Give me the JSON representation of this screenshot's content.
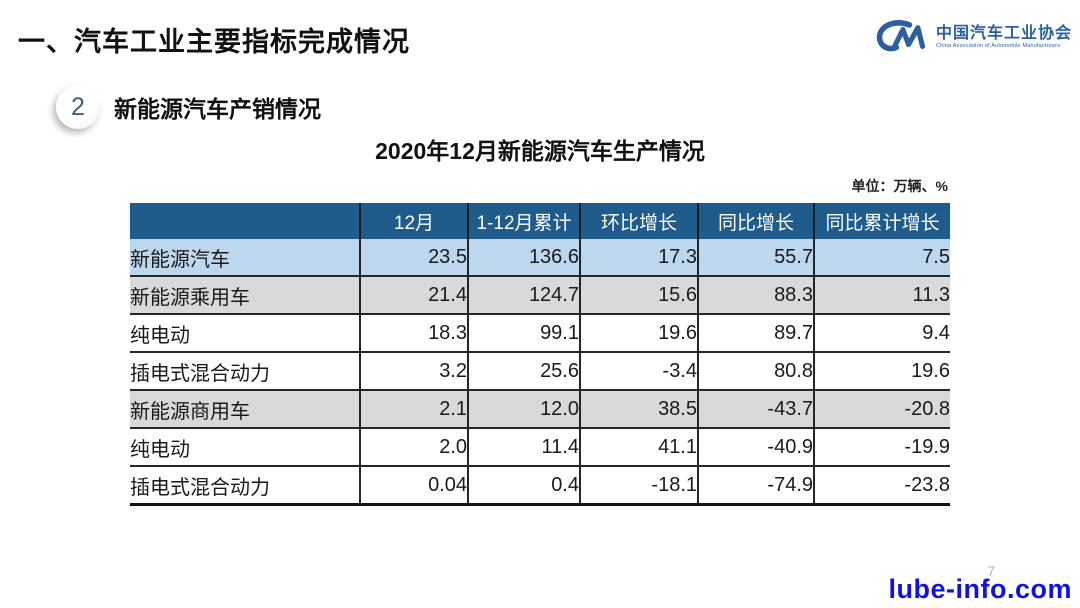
{
  "slide": {
    "main_title": "一、汽车工业主要指标完成情况",
    "section_number": "2",
    "section_title": "新能源汽车产销情况",
    "table_title": "2020年12月新能源汽车生产情况",
    "unit_note": "单位：万辆、%",
    "page_number": "7",
    "watermark": "lube-info.com"
  },
  "logo": {
    "name": "中国汽车工业协会",
    "subtitle": "China Association of Automobile Manufacturers"
  },
  "colors": {
    "header_bg": "#1f5c8c",
    "highlight_row_bg": "#bdd7ee",
    "subtotal_row_bg": "#d9d9d9",
    "logo_blue": "#2b5f9e",
    "watermark_blue": "#1212e0",
    "border_dark": "#262626"
  },
  "chart_data": {
    "type": "table",
    "title": "2020年12月新能源汽车生产情况",
    "unit": "万辆、%",
    "columns": [
      "",
      "12月",
      "1-12月累计",
      "环比增长",
      "同比增长",
      "同比累计增长"
    ],
    "rows": [
      {
        "label": "新能源汽车",
        "indent": 0,
        "style": "highlight",
        "values": [
          "23.5",
          "136.6",
          "17.3",
          "55.7",
          "7.5"
        ]
      },
      {
        "label": "新能源乘用车",
        "indent": 1,
        "style": "subtotal",
        "values": [
          "21.4",
          "124.7",
          "15.6",
          "88.3",
          "11.3"
        ]
      },
      {
        "label": "纯电动",
        "indent": 2,
        "style": "plain",
        "values": [
          "18.3",
          "99.1",
          "19.6",
          "89.7",
          "9.4"
        ]
      },
      {
        "label": "插电式混合动力",
        "indent": 2,
        "style": "plain",
        "values": [
          "3.2",
          "25.6",
          "-3.4",
          "80.8",
          "19.6"
        ]
      },
      {
        "label": "新能源商用车",
        "indent": 1,
        "style": "subtotal",
        "values": [
          "2.1",
          "12.0",
          "38.5",
          "-43.7",
          "-20.8"
        ]
      },
      {
        "label": "纯电动",
        "indent": 2,
        "style": "plain",
        "values": [
          "2.0",
          "11.4",
          "41.1",
          "-40.9",
          "-19.9"
        ]
      },
      {
        "label": "插电式混合动力",
        "indent": 2,
        "style": "plain",
        "values": [
          "0.04",
          "0.4",
          "-18.1",
          "-74.9",
          "-23.8"
        ]
      }
    ]
  }
}
